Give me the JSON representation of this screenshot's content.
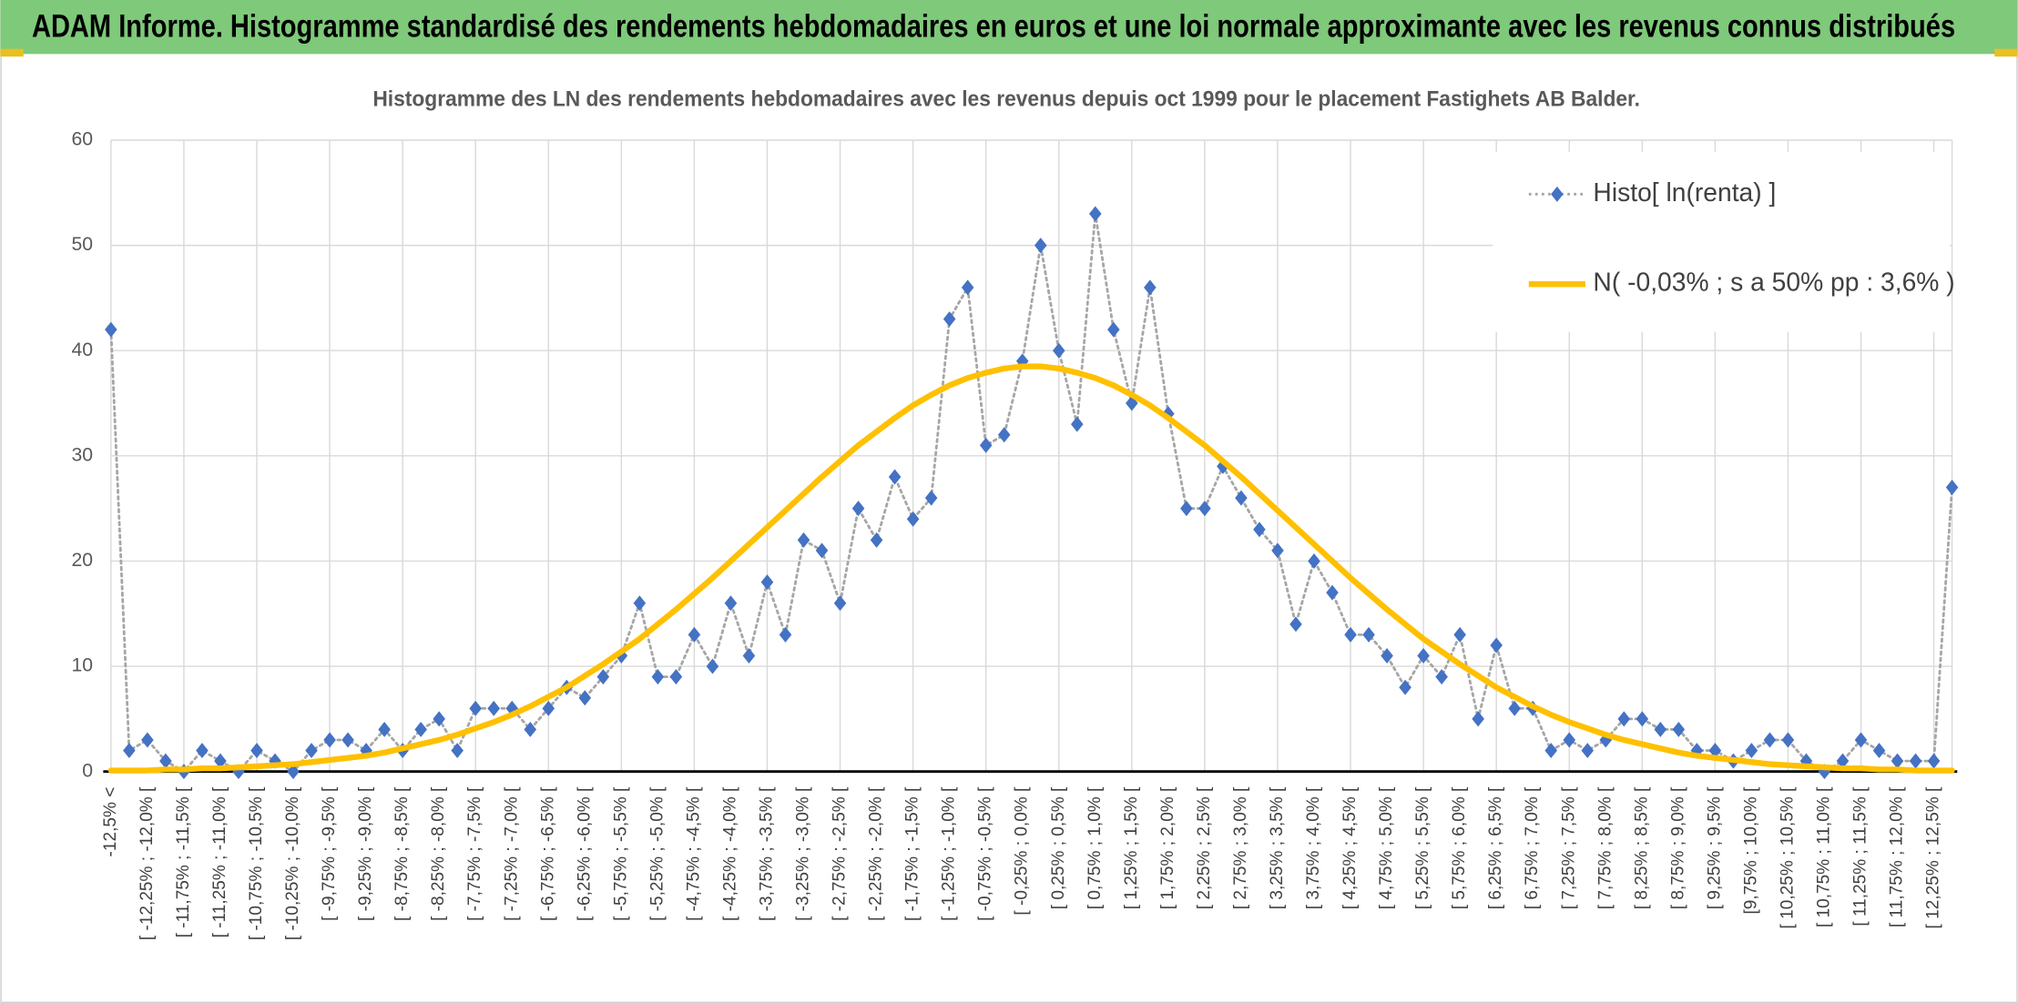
{
  "chart_data": {
    "type": "line",
    "header": "ADAM Informe. Histogramme standardisé des rendements hebdomadaires en euros et une loi normale approximante avec les revenus connus distribués",
    "title": "Histogramme des LN des rendements hebdomadaires avec les revenus depuis oct 1999 pour le placement Fastighets AB Balder.",
    "categories": [
      "-12,5% <",
      null,
      "[ -12,25% ; -12,0% [",
      null,
      "[ -11,75% ; -11,5% [",
      null,
      "[ -11,25% ; -11,0% [",
      null,
      "[ -10,75% ; -10,5% [",
      null,
      "[ -10,25% ; -10,0% [",
      null,
      "[ -9,75% ; -9,5% [",
      null,
      "[ -9,25% ; -9,0% [",
      null,
      "[ -8,75% ; -8,5% [",
      null,
      "[ -8,25% ; -8,0% [",
      null,
      "[ -7,75% ; -7,5% [",
      null,
      "[ -7,25% ; -7,0% [",
      null,
      "[ -6,75% ; -6,5% [",
      null,
      "[ -6,25% ; -6,0% [",
      null,
      "[ -5,75% ; -5,5% [",
      null,
      "[ -5,25% ; -5,0% [",
      null,
      "[ -4,75% ; -4,5% [",
      null,
      "[ -4,25% ; -4,0% [",
      null,
      "[ -3,75% ; -3,5% [",
      null,
      "[ -3,25% ; -3,0% [",
      null,
      "[ -2,75% ; -2,5% [",
      null,
      "[ -2,25% ; -2,0% [",
      null,
      "[ -1,75% ; -1,5% [",
      null,
      "[ -1,25% ; -1,0% [",
      null,
      "[ -0,75% ; -0,5% [",
      null,
      "[ -0,25% ; 0,0% [",
      null,
      "[ 0,25% ; 0,5% [",
      null,
      "[ 0,75% ; 1,0% [",
      null,
      "[ 1,25% ; 1,5% [",
      null,
      "[ 1,75% ; 2,0% [",
      null,
      "[ 2,25% ; 2,5% [",
      null,
      "[ 2,75% ; 3,0% [",
      null,
      "[ 3,25% ; 3,5% [",
      null,
      "[ 3,75% ; 4,0% [",
      null,
      "[ 4,25% ; 4,5% [",
      null,
      "[ 4,75% ; 5,0% [",
      null,
      "[ 5,25% ; 5,5% [",
      null,
      "[ 5,75% ; 6,0% [",
      null,
      "[ 6,25% ; 6,5% [",
      null,
      "[ 6,75% ; 7,0% [",
      null,
      "[ 7,25% ; 7,5% [",
      null,
      "[ 7,75% ; 8,0% [",
      null,
      "[ 8,25% ; 8,5% [",
      null,
      "[ 8,75% ; 9,0% [",
      null,
      "[ 9,25% ; 9,5% [",
      null,
      "[9,75% ; 10,0% [",
      null,
      "[ 10,25% ; 10,5% [",
      null,
      "[ 10,75% ; 11,0% [",
      null,
      "[ 11,25% ; 11,5% [",
      null,
      "[ 11,75% ; 12,0% [",
      null,
      "[ 12,25% ; 12,5% [",
      null
    ],
    "series": [
      {
        "name": "Histo[ ln(renta) ]",
        "color": "#4472c4",
        "line_color": "#a6a6a6",
        "line_style": "dotted",
        "values": [
          42,
          2,
          3,
          1,
          0,
          2,
          1,
          0,
          2,
          1,
          0,
          2,
          3,
          3,
          2,
          4,
          2,
          4,
          5,
          2,
          6,
          6,
          6,
          4,
          6,
          8,
          7,
          9,
          11,
          16,
          9,
          9,
          13,
          10,
          16,
          11,
          18,
          13,
          22,
          21,
          16,
          25,
          22,
          28,
          24,
          26,
          43,
          46,
          31,
          32,
          39,
          50,
          40,
          33,
          53,
          42,
          35,
          46,
          34,
          25,
          25,
          29,
          26,
          23,
          21,
          14,
          20,
          17,
          13,
          13,
          11,
          8,
          11,
          9,
          13,
          5,
          12,
          6,
          6,
          2,
          3,
          2,
          3,
          5,
          5,
          4,
          4,
          2,
          2,
          1,
          2,
          3,
          3,
          1,
          0,
          1,
          3,
          2,
          1,
          1,
          1,
          27
        ]
      },
      {
        "name": "N( -0,03% ; s a 50% pp : 3,6% )",
        "color": "#ffc000",
        "line_style": "solid",
        "values": [
          0.1,
          0.1,
          0.1,
          0.2,
          0.2,
          0.3,
          0.3,
          0.4,
          0.5,
          0.6,
          0.7,
          0.9,
          1.1,
          1.3,
          1.5,
          1.8,
          2.2,
          2.6,
          3.0,
          3.5,
          4.1,
          4.7,
          5.4,
          6.2,
          7.1,
          8.0,
          9.1,
          10.2,
          11.4,
          12.6,
          14.0,
          15.4,
          16.9,
          18.4,
          20.0,
          21.6,
          23.2,
          24.8,
          26.4,
          28.0,
          29.5,
          31.0,
          32.3,
          33.6,
          34.8,
          35.8,
          36.7,
          37.4,
          37.9,
          38.3,
          38.5,
          38.5,
          38.3,
          37.9,
          37.4,
          36.7,
          35.8,
          34.8,
          33.6,
          32.3,
          31.0,
          29.5,
          28.0,
          26.4,
          24.8,
          23.2,
          21.6,
          20.0,
          18.4,
          16.9,
          15.4,
          14.0,
          12.6,
          11.4,
          10.2,
          9.1,
          8.0,
          7.1,
          6.2,
          5.4,
          4.7,
          4.1,
          3.5,
          3.0,
          2.6,
          2.2,
          1.8,
          1.5,
          1.3,
          1.1,
          0.9,
          0.7,
          0.6,
          0.5,
          0.4,
          0.3,
          0.3,
          0.2,
          0.2,
          0.1,
          0.1,
          0.1
        ]
      }
    ],
    "ylim": [
      0,
      60
    ],
    "yticks": [
      0,
      10,
      20,
      30,
      40,
      50,
      60
    ],
    "grid": true,
    "legend": "top-right"
  }
}
